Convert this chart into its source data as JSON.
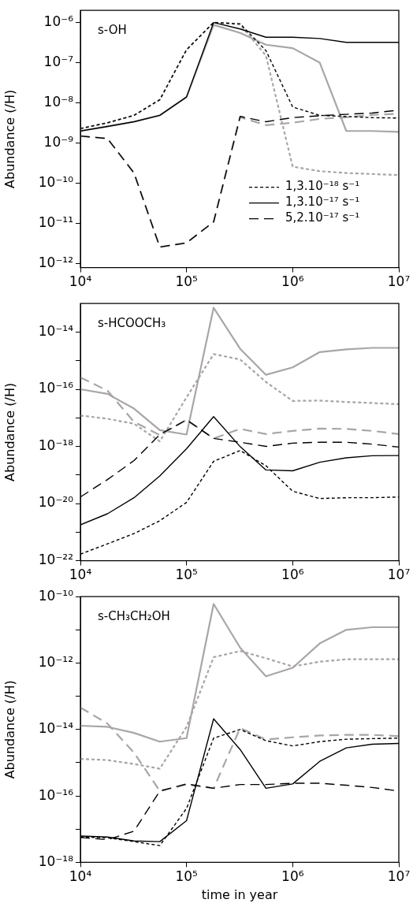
{
  "chart_data": [
    {
      "type": "line",
      "annotations": [
        "s-OH"
      ],
      "ylabel": "Abundance (/H)",
      "log": "xy",
      "legend": "bottom right",
      "marker": "none",
      "x": [
        10000.0,
        18000.0,
        32000.0,
        56000.0,
        100000.0,
        180000.0,
        320000.0,
        560000.0,
        1000000.0,
        1800000.0,
        3200000.0,
        5600000.0,
        10000000.0
      ],
      "xlim": [
        10000.0,
        10000000.0
      ],
      "xticks": [
        {
          "value": 10000.0,
          "label": "10⁴"
        },
        {
          "value": 100000.0,
          "label": "10⁵"
        },
        {
          "value": 1000000.0,
          "label": "10⁶"
        },
        {
          "value": 10000000.0,
          "label": "10⁷"
        }
      ],
      "ylim": [
        8e-13,
        2e-06
      ],
      "yticks": [
        {
          "value": 1e-12,
          "label": "10⁻¹²"
        },
        {
          "value": 1e-11,
          "label": "10⁻¹¹"
        },
        {
          "value": 1e-10,
          "label": "10⁻¹⁰"
        },
        {
          "value": 1e-09,
          "label": "10⁻⁹"
        },
        {
          "value": 1e-08,
          "label": "10⁻⁸"
        },
        {
          "value": 1e-07,
          "label": "10⁻⁷"
        },
        {
          "value": 1e-06,
          "label": "10⁻⁶"
        }
      ],
      "series": [
        {
          "name": "1,3.10⁻¹⁸ s⁻¹",
          "color": "#000000",
          "line_style": "dotted",
          "values": [
            2.3e-09,
            3.2e-09,
            4.9e-09,
            1.2e-08,
            2.1e-07,
            1e-06,
            9.3e-07,
            2e-07,
            7.9e-09,
            4.9e-09,
            4.6e-09,
            4.3e-09,
            4.2e-09
          ]
        },
        {
          "name": "1,3.10⁻¹⁷ s⁻¹",
          "color": "#000000",
          "line_style": "solid",
          "values": [
            2e-09,
            2.6e-09,
            3.4e-09,
            4.9e-09,
            1.4e-08,
            1e-06,
            6.9e-07,
            4.3e-07,
            4.3e-07,
            4e-07,
            3.2e-07,
            3.2e-07,
            3.2e-07
          ]
        },
        {
          "name": "5,2.10⁻¹⁷ s⁻¹",
          "color": "#000000",
          "line_style": "dashed",
          "values": [
            1.5e-09,
            1.3e-09,
            1.8e-10,
            2.6e-12,
            3.3e-12,
            1.1e-11,
            4.6e-09,
            3.4e-09,
            4.3e-09,
            4.8e-09,
            5.2e-09,
            5.6e-09,
            6.6e-09
          ]
        },
        {
          "color": "#a9a5a9",
          "line_style": "dotted",
          "values": [
            2.3e-09,
            3.2e-09,
            4.9e-09,
            1.2e-08,
            2.1e-07,
            1e-06,
            8.9e-07,
            1.5e-07,
            2.6e-10,
            2e-10,
            1.8e-10,
            1.7e-10,
            1.6e-10
          ]
        },
        {
          "color": "#a9a5a9",
          "line_style": "solid",
          "values": [
            2e-09,
            2.6e-09,
            3.4e-09,
            4.9e-09,
            1.4e-08,
            8.7e-07,
            5.5e-07,
            2.8e-07,
            2.3e-07,
            1e-07,
            2e-09,
            2e-09,
            1.9e-09
          ]
        },
        {
          "color": "#a9a5a9",
          "line_style": "dashed",
          "values": [
            1.5e-09,
            1.3e-09,
            1.8e-10,
            2.6e-12,
            3.3e-12,
            1.1e-11,
            4.4e-09,
            2.8e-09,
            3.2e-09,
            4e-09,
            4.4e-09,
            5e-09,
            5.4e-09
          ]
        }
      ]
    },
    {
      "type": "line",
      "annotations": [
        "s-HCOOCH₃"
      ],
      "ylabel": "Abundance (/H)",
      "log": "xy",
      "marker": "none",
      "x": [
        10000.0,
        18000.0,
        32000.0,
        56000.0,
        100000.0,
        180000.0,
        320000.0,
        560000.0,
        1000000.0,
        1800000.0,
        3200000.0,
        5600000.0,
        10000000.0
      ],
      "xlim": [
        10000.0,
        10000000.0
      ],
      "xticks": [
        {
          "value": 10000.0,
          "label": "10⁴"
        },
        {
          "value": 100000.0,
          "label": "10⁵"
        },
        {
          "value": 1000000.0,
          "label": "10⁶"
        },
        {
          "value": 10000000.0,
          "label": "10⁷"
        }
      ],
      "ylim": [
        1e-22,
        1e-13
      ],
      "yticks": [
        {
          "value": 1e-22,
          "label": "10⁻²²"
        },
        {
          "value": 1e-21,
          "label": null
        },
        {
          "value": 1e-20,
          "label": "10⁻²⁰"
        },
        {
          "value": 1e-19,
          "label": null
        },
        {
          "value": 1e-18,
          "label": "10⁻¹⁸"
        },
        {
          "value": 1e-17,
          "label": null
        },
        {
          "value": 1e-16,
          "label": "10⁻¹⁶"
        },
        {
          "value": 1e-15,
          "label": null
        },
        {
          "value": 1e-14,
          "label": "10⁻¹⁴"
        }
      ],
      "series": [
        {
          "color": "#000000",
          "line_style": "dotted",
          "values": [
            1.7e-22,
            3.9e-22,
            8.9e-22,
            2.5e-21,
            1.1e-20,
            3e-19,
            7.2e-19,
            2.1e-19,
            2.7e-20,
            1.5e-20,
            1.6e-20,
            1.6e-20,
            1.7e-20
          ]
        },
        {
          "color": "#000000",
          "line_style": "solid",
          "values": [
            1.8e-21,
            4.4e-21,
            1.6e-20,
            9.3e-20,
            8.3e-19,
            1.1e-17,
            9.8e-19,
            1.5e-19,
            1.4e-19,
            2.8e-19,
            4e-19,
            4.7e-19,
            4.8e-19
          ]
        },
        {
          "color": "#000000",
          "line_style": "dashed",
          "values": [
            1.7e-20,
            6.9e-20,
            3.2e-19,
            2.6e-18,
            8.5e-18,
            1.9e-18,
            1.4e-18,
            1e-18,
            1.3e-18,
            1.4e-18,
            1.4e-18,
            1.2e-18,
            9.5e-19
          ]
        },
        {
          "color": "#a9a5a9",
          "line_style": "dotted",
          "values": [
            1.2e-17,
            9.3e-18,
            6.2e-18,
            1.5e-18,
            5.2e-17,
            1.7e-15,
            1.1e-15,
            1.8e-16,
            3.9e-17,
            4e-17,
            3.6e-17,
            3.3e-17,
            3e-17
          ]
        },
        {
          "color": "#a9a5a9",
          "line_style": "solid",
          "values": [
            1e-16,
            6.9e-17,
            2.1e-17,
            3.7e-18,
            2.6e-18,
            7.1e-14,
            2.6e-15,
            3.2e-16,
            5.8e-16,
            2e-15,
            2.5e-15,
            2.8e-15,
            2.8e-15
          ]
        },
        {
          "color": "#a9a5a9",
          "line_style": "dashed",
          "values": [
            2.6e-16,
            8.9e-17,
            7.2e-18,
            2.5e-18,
            8.5e-18,
            1.9e-18,
            4.1e-18,
            2.7e-18,
            3.5e-18,
            4.2e-18,
            4.1e-18,
            3.5e-18,
            2.7e-18
          ]
        }
      ]
    },
    {
      "type": "line",
      "annotations": [
        "s-CH₃CH₂OH"
      ],
      "xlabel": "time in year",
      "ylabel": "Abundance (/H)",
      "log": "xy",
      "marker": "none",
      "x": [
        10000.0,
        18000.0,
        32000.0,
        56000.0,
        100000.0,
        180000.0,
        320000.0,
        560000.0,
        1000000.0,
        1800000.0,
        3200000.0,
        5600000.0,
        10000000.0
      ],
      "xlim": [
        10000.0,
        10000000.0
      ],
      "xticks": [
        {
          "value": 10000.0,
          "label": "10⁴"
        },
        {
          "value": 100000.0,
          "label": "10⁵"
        },
        {
          "value": 1000000.0,
          "label": "10⁶"
        },
        {
          "value": 10000000.0,
          "label": "10⁷"
        }
      ],
      "ylim": [
        1e-18,
        1e-10
      ],
      "yticks": [
        {
          "value": 1e-18,
          "label": "10⁻¹⁸"
        },
        {
          "value": 1e-17,
          "label": null
        },
        {
          "value": 1e-16,
          "label": "10⁻¹⁶"
        },
        {
          "value": 1e-15,
          "label": null
        },
        {
          "value": 1e-14,
          "label": "10⁻¹⁴"
        },
        {
          "value": 1e-13,
          "label": null
        },
        {
          "value": 1e-12,
          "label": "10⁻¹²"
        },
        {
          "value": 1e-11,
          "label": null
        },
        {
          "value": 1e-10,
          "label": "10⁻¹⁰"
        }
      ],
      "series": [
        {
          "color": "#000000",
          "line_style": "dotted",
          "values": [
            5.8e-18,
            5.5e-18,
            4.2e-18,
            3.2e-18,
            4.2e-17,
            5.5e-15,
            1e-14,
            4.6e-15,
            3.2e-15,
            4.3e-15,
            5.1e-15,
            5.3e-15,
            5.5e-15
          ]
        },
        {
          "color": "#000000",
          "line_style": "solid",
          "values": [
            6.2e-18,
            5.8e-18,
            4.4e-18,
            4.2e-18,
            1.8e-17,
            2.1e-14,
            2.5e-15,
            1.7e-16,
            2.3e-16,
            1.1e-15,
            2.8e-15,
            3.6e-15,
            3.8e-15
          ]
        },
        {
          "color": "#000000",
          "line_style": "dashed",
          "values": [
            5.6e-18,
            4.8e-18,
            8.7e-18,
            1.4e-16,
            2.3e-16,
            1.7e-16,
            2.2e-16,
            2.2e-16,
            2.4e-16,
            2.4e-16,
            2.1e-16,
            1.8e-16,
            1.4e-16
          ]
        },
        {
          "color": "#a9a5a9",
          "line_style": "dotted",
          "values": [
            1.3e-15,
            1.2e-15,
            9.1e-16,
            6.6e-16,
            1.2e-14,
            1.5e-12,
            2.3e-12,
            1.4e-12,
            7.9e-13,
            1.1e-12,
            1.3e-12,
            1.3e-12,
            1.3e-12
          ]
        },
        {
          "color": "#a9a5a9",
          "line_style": "solid",
          "values": [
            1.3e-14,
            1.2e-14,
            7.9e-15,
            4.3e-15,
            5.5e-15,
            6e-11,
            2.9e-12,
            4e-13,
            7.2e-13,
            3.9e-12,
            1e-11,
            1.2e-11,
            1.2e-11
          ]
        },
        {
          "color": "#a9a5a9",
          "line_style": "dashed",
          "values": [
            4.6e-14,
            1.5e-14,
            2e-15,
            1.4e-16,
            2.2e-16,
            1.7e-16,
            1.1e-14,
            5e-15,
            5.8e-15,
            6.6e-15,
            6.9e-15,
            6.9e-15,
            6.3e-15
          ]
        }
      ]
    }
  ]
}
